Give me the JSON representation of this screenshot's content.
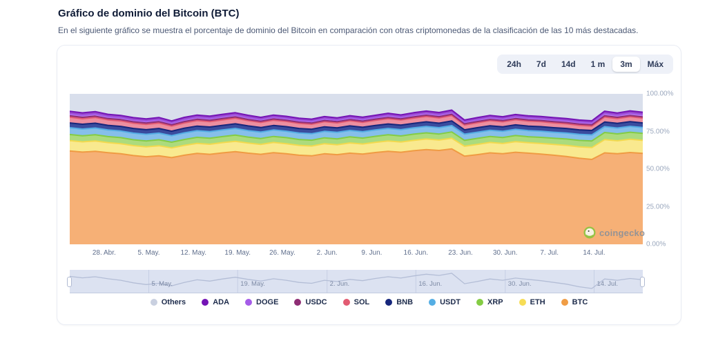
{
  "page": {
    "title": "Gráfico de dominio del Bitcoin (BTC)",
    "subtitle": "En el siguiente gráfico se muestra el porcentaje de dominio del Bitcoin en comparación con otras criptomonedas de la clasificación de las 10 más destacadas."
  },
  "time_ranges": {
    "options": [
      "24h",
      "7d",
      "14d",
      "1 m",
      "3m",
      "Máx"
    ],
    "selected": "3m"
  },
  "watermark": {
    "label": "coingecko",
    "icon_color": "#8BC53F"
  },
  "chart_data": {
    "type": "area",
    "stacked": true,
    "unit": "percent dominance",
    "ylim": [
      0,
      100
    ],
    "grid": false,
    "legend_position": "bottom",
    "y_ticks": [
      "100.00%",
      "75.00%",
      "50.00%",
      "25.00%",
      "0.00%"
    ],
    "x_ticks": [
      {
        "label": "28. Abr.",
        "f": 0.06
      },
      {
        "label": "5. May.",
        "f": 0.138
      },
      {
        "label": "12. May.",
        "f": 0.216
      },
      {
        "label": "19. May.",
        "f": 0.293
      },
      {
        "label": "26. May.",
        "f": 0.371
      },
      {
        "label": "2. Jun.",
        "f": 0.449
      },
      {
        "label": "9. Jun.",
        "f": 0.527
      },
      {
        "label": "16. Jun.",
        "f": 0.604
      },
      {
        "label": "23. Jun.",
        "f": 0.682
      },
      {
        "label": "30. Jun.",
        "f": 0.76
      },
      {
        "label": "7. Jul.",
        "f": 0.837
      },
      {
        "label": "14. Jul.",
        "f": 0.915
      }
    ],
    "series": [
      {
        "name": "BTC",
        "stroke": "#EF9B43",
        "fill": "#F6B076",
        "values": [
          62.0,
          61.3,
          61.8,
          60.9,
          60.2,
          59.0,
          58.2,
          58.8,
          57.6,
          59.2,
          60.4,
          59.8,
          60.8,
          61.6,
          60.6,
          59.8,
          60.9,
          60.2,
          59.2,
          58.8,
          60.2,
          59.6,
          60.6,
          60.0,
          61.0,
          61.8,
          61.2,
          62.2,
          63.0,
          62.4,
          63.4,
          58.6,
          59.6,
          60.8,
          60.2,
          61.2,
          60.6,
          60.0,
          59.2,
          58.4,
          57.2,
          56.4,
          60.8,
          60.2,
          61.0,
          60.4
        ]
      },
      {
        "name": "ETH",
        "stroke": "#F2D94E",
        "fill": "#F9E98F",
        "values": [
          6.9,
          6.8,
          6.9,
          6.7,
          6.7,
          6.6,
          6.6,
          6.7,
          6.5,
          6.6,
          6.7,
          6.7,
          6.8,
          6.9,
          6.7,
          6.6,
          6.8,
          6.7,
          6.6,
          6.5,
          6.7,
          6.6,
          6.8,
          6.7,
          6.8,
          6.9,
          6.8,
          6.9,
          7.0,
          6.9,
          7.1,
          6.6,
          6.8,
          6.9,
          6.8,
          7.0,
          6.9,
          7.0,
          7.2,
          7.4,
          7.6,
          7.9,
          8.8,
          8.6,
          8.8,
          8.7
        ]
      },
      {
        "name": "XRP",
        "stroke": "#84CC44",
        "fill": "#ACDB7D",
        "values": [
          4.1,
          4.0,
          4.1,
          4.0,
          4.0,
          3.9,
          3.9,
          4.0,
          3.8,
          3.9,
          4.0,
          4.0,
          4.0,
          4.1,
          4.0,
          3.9,
          4.0,
          4.0,
          3.9,
          3.9,
          3.9,
          3.9,
          4.0,
          3.9,
          4.0,
          4.1,
          4.0,
          4.1,
          4.1,
          4.0,
          4.2,
          3.9,
          4.0,
          4.0,
          4.0,
          4.1,
          4.0,
          4.1,
          4.1,
          4.2,
          4.3,
          4.4,
          4.7,
          4.6,
          4.7,
          4.6
        ]
      },
      {
        "name": "USDT",
        "stroke": "#55AEE4",
        "fill": "#86BFEA",
        "values": [
          4.5,
          4.5,
          4.5,
          4.4,
          4.4,
          4.4,
          4.4,
          4.4,
          4.3,
          4.4,
          4.4,
          4.4,
          4.4,
          4.4,
          4.3,
          4.3,
          4.3,
          4.3,
          4.3,
          4.3,
          4.3,
          4.3,
          4.3,
          4.2,
          4.2,
          4.2,
          4.2,
          4.2,
          4.2,
          4.2,
          4.2,
          4.1,
          4.1,
          4.1,
          4.1,
          4.1,
          4.1,
          4.1,
          4.0,
          4.0,
          4.0,
          4.0,
          3.9,
          3.9,
          3.9,
          3.9
        ]
      },
      {
        "name": "BNB",
        "stroke": "#16267B",
        "fill": "#3A4C9E",
        "values": [
          3.2,
          3.2,
          3.2,
          3.1,
          3.1,
          3.1,
          3.1,
          3.1,
          3.0,
          3.1,
          3.1,
          3.1,
          3.1,
          3.1,
          3.1,
          3.0,
          3.0,
          3.0,
          3.0,
          3.0,
          3.0,
          3.0,
          3.0,
          3.0,
          3.0,
          3.0,
          3.0,
          3.0,
          3.1,
          3.0,
          3.1,
          2.9,
          3.0,
          3.0,
          3.0,
          3.0,
          3.0,
          3.0,
          3.0,
          3.0,
          3.0,
          3.0,
          3.1,
          3.1,
          3.1,
          3.1
        ]
      },
      {
        "name": "SOL",
        "stroke": "#E25B72",
        "fill": "#EC8FA0",
        "values": [
          3.8,
          3.7,
          3.8,
          3.6,
          3.6,
          3.5,
          3.5,
          3.6,
          3.4,
          3.5,
          3.6,
          3.5,
          3.6,
          3.7,
          3.5,
          3.4,
          3.5,
          3.5,
          3.4,
          3.3,
          3.4,
          3.3,
          3.4,
          3.3,
          3.4,
          3.5,
          3.4,
          3.5,
          3.6,
          3.5,
          3.6,
          3.2,
          3.3,
          3.4,
          3.3,
          3.4,
          3.3,
          3.3,
          3.2,
          3.1,
          3.0,
          2.9,
          3.3,
          3.2,
          3.3,
          3.2
        ]
      },
      {
        "name": "USDC",
        "stroke": "#8E2D74",
        "fill": "#AC5E96",
        "values": [
          0.9,
          0.9,
          0.9,
          0.9,
          0.9,
          0.9,
          0.9,
          0.9,
          0.8,
          0.9,
          0.9,
          0.9,
          0.9,
          0.9,
          0.8,
          0.8,
          0.8,
          0.8,
          0.8,
          0.8,
          0.8,
          0.8,
          0.8,
          0.8,
          0.8,
          0.8,
          0.8,
          0.8,
          0.8,
          0.8,
          0.8,
          0.8,
          0.8,
          0.8,
          0.8,
          0.8,
          0.8,
          0.8,
          0.8,
          0.8,
          0.8,
          0.8,
          0.8,
          0.8,
          0.8,
          0.8
        ]
      },
      {
        "name": "DOGE",
        "stroke": "#A55CE8",
        "fill": "#C28BED",
        "values": [
          1.2,
          1.2,
          1.2,
          1.1,
          1.1,
          1.1,
          1.1,
          1.1,
          1.0,
          1.1,
          1.1,
          1.1,
          1.1,
          1.1,
          1.1,
          1.0,
          1.0,
          1.0,
          1.0,
          1.0,
          1.0,
          1.0,
          1.0,
          1.0,
          1.0,
          1.1,
          1.0,
          1.1,
          1.1,
          1.1,
          1.1,
          1.0,
          1.0,
          1.1,
          1.0,
          1.1,
          1.1,
          1.1,
          1.1,
          1.1,
          1.1,
          1.1,
          1.3,
          1.2,
          1.3,
          1.3
        ]
      },
      {
        "name": "ADA",
        "stroke": "#7414B5",
        "fill": "#9747CC",
        "values": [
          1.8,
          1.8,
          1.8,
          1.7,
          1.7,
          1.7,
          1.7,
          1.7,
          1.6,
          1.7,
          1.7,
          1.7,
          1.7,
          1.7,
          1.7,
          1.6,
          1.6,
          1.6,
          1.6,
          1.6,
          1.6,
          1.6,
          1.6,
          1.6,
          1.6,
          1.7,
          1.6,
          1.7,
          1.7,
          1.7,
          1.7,
          1.5,
          1.6,
          1.6,
          1.6,
          1.6,
          1.6,
          1.6,
          1.6,
          1.6,
          1.6,
          1.6,
          1.8,
          1.7,
          1.8,
          1.8
        ]
      }
    ],
    "others": {
      "name": "Others",
      "fill": "#D9DFEC",
      "note": "remainder to 100%"
    },
    "legend": [
      {
        "name": "Others",
        "color": "#C9D0E0"
      },
      {
        "name": "ADA",
        "color": "#7414B5"
      },
      {
        "name": "DOGE",
        "color": "#A55CE8"
      },
      {
        "name": "USDC",
        "color": "#8E2D74"
      },
      {
        "name": "SOL",
        "color": "#E25B72"
      },
      {
        "name": "BNB",
        "color": "#16267B"
      },
      {
        "name": "USDT",
        "color": "#55AEE4"
      },
      {
        "name": "XRP",
        "color": "#84CC44"
      },
      {
        "name": "ETH",
        "color": "#F7DD56"
      },
      {
        "name": "BTC",
        "color": "#F09D45"
      }
    ],
    "navigator": {
      "bg": "#DCE2F1",
      "line": "#B3BDD6",
      "grid": "#C6CFE4",
      "ticks": [
        {
          "label": "5. May.",
          "f": 0.138
        },
        {
          "label": "19. May.",
          "f": 0.293
        },
        {
          "label": "2. Jun.",
          "f": 0.449
        },
        {
          "label": "16. Jun.",
          "f": 0.604
        },
        {
          "label": "30. Jun.",
          "f": 0.76
        },
        {
          "label": "14. Jul.",
          "f": 0.915
        }
      ]
    }
  }
}
